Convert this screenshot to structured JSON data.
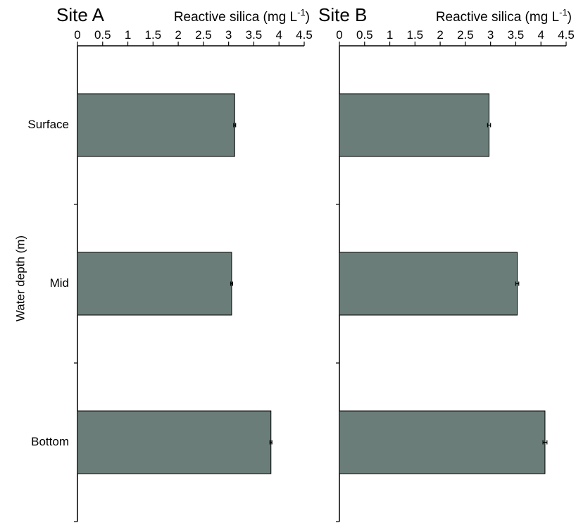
{
  "y_axis_label": "Water depth (m)",
  "chart_data": [
    {
      "type": "bar",
      "orientation": "horizontal",
      "title": "Site A",
      "xlabel_prefix": "Reactive silica (mg L",
      "xlabel_superscript": "-1",
      "xlabel_suffix": ")",
      "ylabel": "Water depth (m)",
      "categories": [
        "Surface",
        "Mid",
        "Bottom"
      ],
      "values": [
        3.12,
        3.06,
        3.84
      ],
      "errors": [
        0.02,
        0.02,
        0.02
      ],
      "xlim": [
        0,
        4.5
      ],
      "ticks": [
        "0",
        "0.5",
        "1",
        "1.5",
        "2",
        "2.5",
        "3",
        "3.5",
        "4",
        "4.5"
      ],
      "axis_position": "top",
      "bar_color": "#6b7d79",
      "grid": false
    },
    {
      "type": "bar",
      "orientation": "horizontal",
      "title": "Site B",
      "xlabel_prefix": "Reactive silica (mg L",
      "xlabel_superscript": "-1",
      "xlabel_suffix": ")",
      "categories": [
        "Surface",
        "Mid",
        "Bottom"
      ],
      "values": [
        2.97,
        3.53,
        4.08
      ],
      "errors": [
        0.03,
        0.03,
        0.04
      ],
      "xlim": [
        0,
        4.5
      ],
      "ticks": [
        "0",
        "0.5",
        "1",
        "1.5",
        "2",
        "2.5",
        "3",
        "3.5",
        "4",
        "4.5"
      ],
      "axis_position": "top",
      "bar_color": "#6b7d79",
      "grid": false
    }
  ]
}
